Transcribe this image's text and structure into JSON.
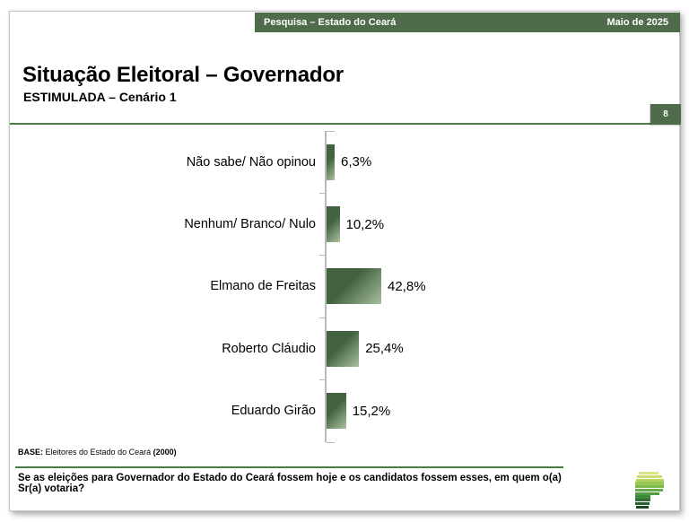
{
  "page_number": "8",
  "header": {
    "title": "Pesquisa – Estado do Ceará",
    "date": "Maio de 2025"
  },
  "title": {
    "main": "Situação Eleitoral – Governador",
    "subtitle": "ESTIMULADA – Cenário 1"
  },
  "chart_data": {
    "type": "bar",
    "orientation": "horizontal",
    "title": "Situação Eleitoral – Governador (ESTIMULADA – Cenário 1)",
    "categories": [
      "Não sabe/ Não opinou",
      "Nenhum/ Branco/ Nulo",
      "Elmano de Freitas",
      "Roberto Cláudio",
      "Eduardo Girão"
    ],
    "values": [
      6.3,
      10.2,
      42.8,
      25.4,
      15.2
    ],
    "value_labels": [
      "6,3%",
      "10,2%",
      "42,8%",
      "25,4%",
      "15,2%"
    ],
    "unit": "%",
    "grid": false,
    "legend": false,
    "bar_color_dark": "#436340",
    "bar_color_light": "#a9c0a1",
    "axis_color": "#b9b9b9"
  },
  "footer": {
    "base_label": "BASE:",
    "base_text": " Eleitores do Estado do Ceará ",
    "base_value": "(2000)",
    "question": "Se as eleições para Governador do Estado do Ceará fossem hoje e os candidatos fossem esses, em quem o(a) Sr(a) votaria?"
  },
  "colors": {
    "header_green": "#4e6c49",
    "rule_green": "#4a7d44"
  },
  "logo": {
    "name": "parana-pesquisas-logo",
    "stripes": [
      {
        "w": 22,
        "i": 4,
        "color": "#dce489"
      },
      {
        "w": 28,
        "i": 2,
        "color": "#cbdd70"
      },
      {
        "w": 31,
        "i": 1,
        "color": "#b3d35e"
      },
      {
        "w": 32,
        "i": 0,
        "color": "#9aca55"
      },
      {
        "w": 32,
        "i": 0,
        "color": "#7fbb4e"
      },
      {
        "w": 31,
        "i": 0,
        "color": "#66ab48"
      },
      {
        "w": 27,
        "i": 0,
        "color": "#509b43"
      },
      {
        "w": 17,
        "i": 0,
        "color": "#41873e"
      },
      {
        "w": 17,
        "i": 0,
        "color": "#347137"
      },
      {
        "w": 16,
        "i": 0,
        "color": "#295f31"
      },
      {
        "w": 14,
        "i": 1,
        "color": "#1e4c2a"
      }
    ]
  }
}
